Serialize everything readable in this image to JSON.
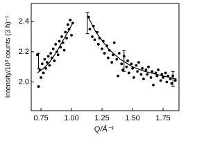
{
  "chart_data": {
    "type": "scatter",
    "y_label": "Intensity/10³ counts (3 h)⁻¹",
    "x_label": "Q/Å⁻¹",
    "xlim": [
      0.67,
      1.88
    ],
    "ylim": [
      1.81,
      2.52
    ],
    "xticks": [
      0.75,
      {
        "value": 1,
        "label": "1.00"
      },
      1.25,
      {
        "value": 1.5,
        "label": "1.50"
      },
      1.75
    ],
    "yticks": [
      {
        "value": 2,
        "label": "2.0"
      },
      2.2,
      2.4
    ],
    "color": "#000000",
    "series": [
      {
        "type": "scatter",
        "x": [
          0.72,
          0.73,
          0.74,
          0.75,
          0.76,
          0.77,
          0.78,
          0.79,
          0.8,
          0.81,
          0.82,
          0.83,
          0.84,
          0.85,
          0.86,
          0.87,
          0.88,
          0.89,
          0.9,
          0.91,
          0.92,
          0.93,
          0.94,
          0.95,
          0.96,
          0.97,
          0.98,
          0.99,
          1.0,
          1.01,
          1.14,
          1.15,
          1.17,
          1.18,
          1.19,
          1.21,
          1.22,
          1.23,
          1.25,
          1.26,
          1.27,
          1.29,
          1.3,
          1.31,
          1.33,
          1.34,
          1.35,
          1.37,
          1.38,
          1.39,
          1.41,
          1.42,
          1.43,
          1.45,
          1.46,
          1.47,
          1.49,
          1.5,
          1.51,
          1.53,
          1.54,
          1.55,
          1.57,
          1.58,
          1.59,
          1.61,
          1.62,
          1.63,
          1.65,
          1.66,
          1.67,
          1.69,
          1.7,
          1.71,
          1.73,
          1.74,
          1.75,
          1.77,
          1.78,
          1.79,
          1.81,
          1.82,
          1.83,
          1.85
        ],
        "values": [
          2.18,
          1.97,
          2.08,
          2.03,
          2.12,
          2.06,
          2.15,
          2.09,
          2.13,
          2.17,
          2.11,
          2.19,
          2.16,
          2.22,
          2.14,
          2.25,
          2.2,
          2.18,
          2.27,
          2.23,
          2.3,
          2.26,
          2.21,
          2.33,
          2.29,
          2.38,
          2.35,
          2.41,
          2.31,
          2.39,
          2.43,
          2.35,
          2.3,
          2.37,
          2.28,
          2.33,
          2.25,
          2.29,
          2.22,
          2.27,
          2.19,
          2.24,
          2.16,
          2.21,
          2.13,
          2.18,
          2.26,
          2.15,
          2.04,
          2.19,
          2.12,
          2.08,
          2.17,
          2.1,
          2.14,
          2.06,
          2.12,
          2.09,
          2.03,
          2.11,
          2.07,
          2.13,
          2.05,
          2.09,
          2.02,
          2.08,
          2.05,
          2.1,
          2.03,
          2.07,
          1.98,
          2.06,
          2.04,
          2.08,
          2.01,
          2.05,
          2.03,
          2.06,
          2.0,
          2.04,
          2.02,
          1.99,
          2.04,
          2.01
        ]
      },
      {
        "type": "line",
        "x": [
          0.72,
          0.77,
          0.82,
          0.87,
          0.92,
          0.97,
          1.01
        ],
        "values": [
          2.06,
          2.09,
          2.13,
          2.19,
          2.26,
          2.33,
          2.39
        ]
      },
      {
        "type": "line",
        "x": [
          1.13,
          1.2,
          1.3,
          1.4,
          1.5,
          1.6,
          1.7,
          1.8,
          1.86
        ],
        "values": [
          2.44,
          2.33,
          2.22,
          2.15,
          2.1,
          2.07,
          2.05,
          2.03,
          2.02
        ]
      },
      {
        "type": "errorbar",
        "x": [
          0.73,
          1.13,
          1.43,
          1.83
        ],
        "values": [
          2.14,
          2.39,
          2.14,
          2.02
        ],
        "errors": [
          0.05,
          0.07,
          0.07,
          0.05
        ]
      }
    ]
  }
}
